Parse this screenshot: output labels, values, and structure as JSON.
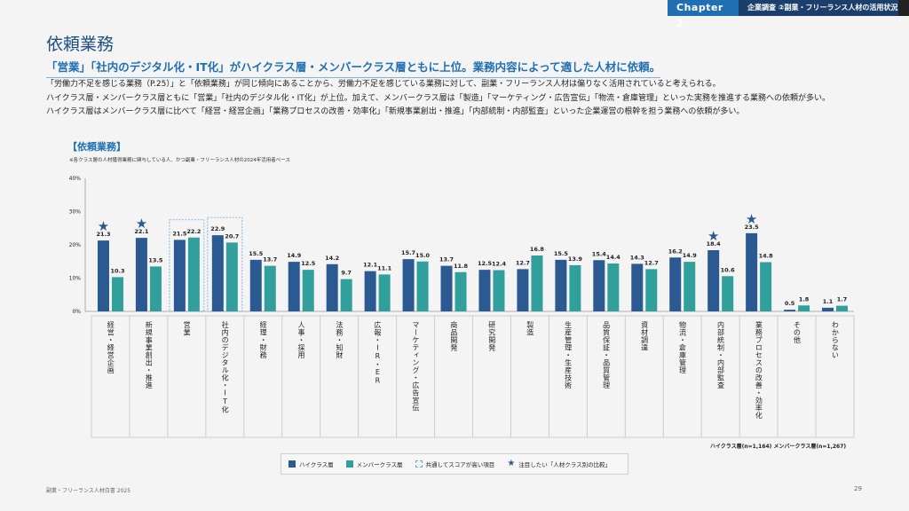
{
  "header": {
    "chapter": "Chapter 2",
    "section": "企業調査 ②副業・フリーランス人材の活用状況"
  },
  "page": {
    "title": "依頼業務",
    "headline": "「営業」「社内のデジタル化・IT化」がハイクラス層・メンバークラス層ともに上位。業務内容によって適した人材に依頼。",
    "body": [
      "「労働力不足を感じる業務（P.25）」と「依頼業務」が同じ傾向にあることから、労働力不足を感じている業務に対して、副業・フリーランス人材は偏りなく活用されていると考えられる。",
      "ハイクラス層・メンバークラス層ともに「営業」「社内のデジタル化・IT化」が上位。加えて、メンバークラス層は「製造」「マーケティング・広告宣伝」「物流・倉庫管理」といった実務を推進する業務への依頼が多い。",
      "ハイクラス層はメンバークラス層に比べて「経営・経営企画」「業務プロセスの改善・効率化」「新規事業創出・推進」「内部統制・内部監査」といった企業運営の根幹を担う業務への依頼が多い。"
    ],
    "footer": "副業・フリーランス人材白書 2025",
    "page_number": "29"
  },
  "chart_data": {
    "type": "bar",
    "title": "【依頼業務】",
    "note": "※各クラス層の人材獲得業務に関与している人、かつ副業・フリーランス人材の2024年活用者ベース",
    "ylim": [
      0,
      40
    ],
    "yticks": [
      "0%",
      "10%",
      "20%",
      "30%",
      "40%"
    ],
    "ytick_values": [
      0,
      10,
      20,
      30,
      40
    ],
    "categories": [
      "経営・経営企画",
      "新規事業創出・推進",
      "営業",
      "社内のデジタル化・IT化",
      "経理・財務",
      "人事・採用",
      "法務・知財",
      "広報・IR・ER",
      "マーケティング・広告宣伝",
      "商品開発",
      "研究開発",
      "製造",
      "生産管理・生産技術",
      "品質保証・品質管理",
      "資材調達",
      "物流・倉庫管理",
      "内部統制・内部監査",
      "業務プロセスの改善・効率化",
      "その他",
      "わからない"
    ],
    "series": [
      {
        "name": "ハイクラス層",
        "color": "#2b5a92",
        "values": [
          21.3,
          22.1,
          21.5,
          22.9,
          15.5,
          14.9,
          14.2,
          12.1,
          15.7,
          13.7,
          12.5,
          12.7,
          15.5,
          15.4,
          14.3,
          16.2,
          18.4,
          23.5,
          0.5,
          1.1
        ]
      },
      {
        "name": "メンバークラス層",
        "color": "#31a09c",
        "values": [
          10.3,
          13.5,
          22.2,
          20.7,
          13.7,
          12.5,
          9.7,
          11.1,
          15.0,
          11.8,
          12.4,
          16.8,
          13.9,
          14.4,
          12.7,
          14.9,
          10.6,
          14.8,
          1.8,
          1.7
        ]
      }
    ],
    "highlight_common": [
      "営業",
      "社内のデジタル化・IT化"
    ],
    "starred": [
      "経営・経営企画",
      "新規事業創出・推進",
      "内部統制・内部監査",
      "業務プロセスの改善・効率化"
    ],
    "sample_note": "ハイクラス層(n=1,164) メンバークラス層(n=1,267)",
    "legend": {
      "high": "ハイクラス層",
      "member": "メンバークラス層",
      "common": "共通してスコアが高い項目",
      "star": "注目したい「人材クラス別の比較」"
    },
    "legend_position": "bottom-center"
  }
}
